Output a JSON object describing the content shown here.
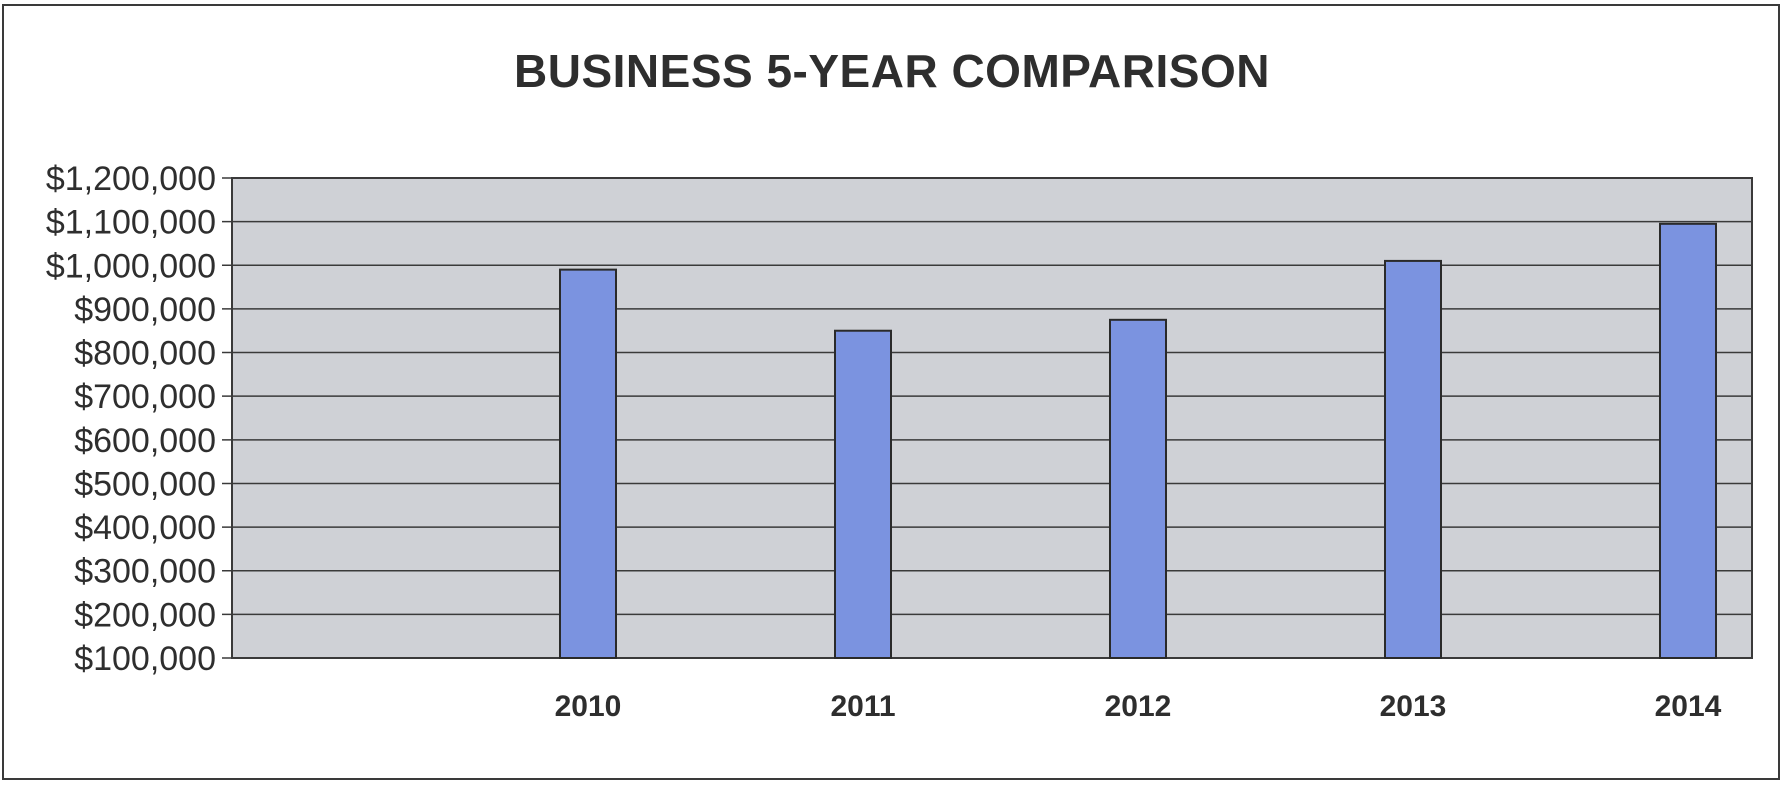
{
  "chart_data": {
    "type": "bar",
    "title": "BUSINESS 5-YEAR COMPARISON",
    "xlabel": "",
    "ylabel": "",
    "categories": [
      "2010",
      "2011",
      "2012",
      "2013",
      "2014"
    ],
    "values": [
      990000,
      850000,
      875000,
      1010000,
      1095000
    ],
    "ylim": [
      100000,
      1200000
    ],
    "y_ticks": [
      "$100,000",
      "$200,000",
      "$300,000",
      "$400,000",
      "$500,000",
      "$600,000",
      "$700,000",
      "$800,000",
      "$900,000",
      "$1,000,000",
      "$1,100,000",
      "$1,200,000"
    ],
    "grid": true,
    "legend": "none",
    "colors": {
      "bar": "#7b93e0",
      "bar_stroke": "#2a2a2a",
      "plot_bg": "#cfd1d6",
      "grid": "#3a3a3a"
    }
  }
}
